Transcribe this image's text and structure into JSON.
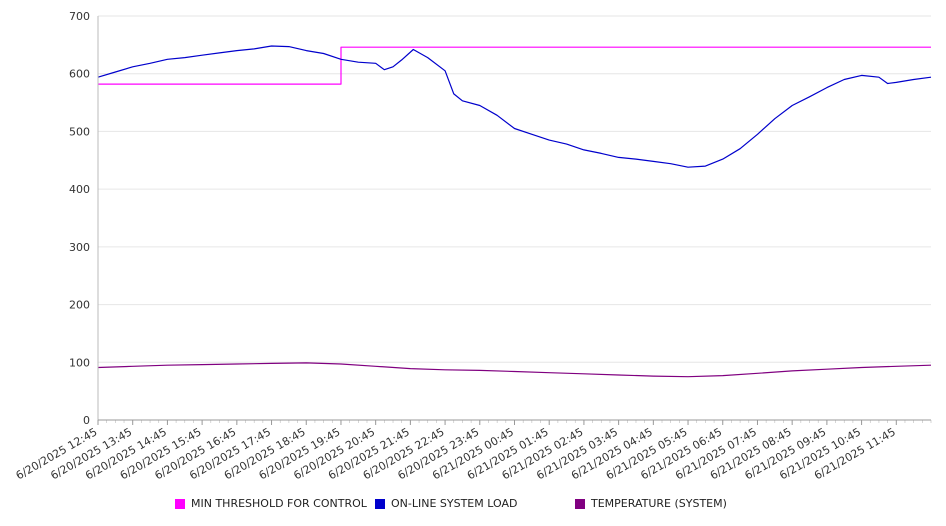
{
  "chart_data": {
    "type": "line",
    "y_ticks": [
      0,
      100,
      200,
      300,
      400,
      500,
      600,
      700
    ],
    "ylim": [
      0,
      700
    ],
    "grid": true,
    "legend_placement": "bottom",
    "x_tick_labels": [
      "6/20/2025 12:45",
      "6/20/2025 13:45",
      "6/20/2025 14:45",
      "6/20/2025 15:45",
      "6/20/2025 16:45",
      "6/20/2025 17:45",
      "6/20/2025 18:45",
      "6/20/2025 19:45",
      "6/20/2025 20:45",
      "6/20/2025 21:45",
      "6/20/2025 22:45",
      "6/20/2025 23:45",
      "6/21/2025 00:45",
      "6/21/2025 01:45",
      "6/21/2025 02:45",
      "6/21/2025 03:45",
      "6/21/2025 04:45",
      "6/21/2025 05:45",
      "6/21/2025 06:45",
      "6/21/2025 07:45",
      "6/21/2025 08:45",
      "6/21/2025 09:45",
      "6/21/2025 10:45",
      "6/21/2025 11:45"
    ],
    "x_range": [
      "6/20/2025 12:45",
      "6/21/2025 12:45"
    ],
    "series": [
      {
        "name": "MIN THRESHOLD FOR CONTROL",
        "color": "#ff00ff",
        "points": [
          [
            "6/20/2025 12:45",
            582
          ],
          [
            "6/20/2025 19:45",
            582
          ],
          [
            "6/20/2025 19:45",
            646
          ],
          [
            "6/21/2025 12:45",
            646
          ]
        ]
      },
      {
        "name": "ON-LINE SYSTEM LOAD",
        "color": "#0000cc",
        "points": [
          [
            "6/20/2025 12:45",
            594
          ],
          [
            "6/20/2025 13:15",
            603
          ],
          [
            "6/20/2025 13:45",
            612
          ],
          [
            "6/20/2025 14:15",
            618
          ],
          [
            "6/20/2025 14:45",
            625
          ],
          [
            "6/20/2025 15:15",
            628
          ],
          [
            "6/20/2025 15:45",
            632
          ],
          [
            "6/20/2025 16:15",
            636
          ],
          [
            "6/20/2025 16:45",
            640
          ],
          [
            "6/20/2025 17:15",
            643
          ],
          [
            "6/20/2025 17:45",
            648
          ],
          [
            "6/20/2025 18:15",
            647
          ],
          [
            "6/20/2025 18:45",
            640
          ],
          [
            "6/20/2025 19:15",
            635
          ],
          [
            "6/20/2025 19:45",
            625
          ],
          [
            "6/20/2025 20:15",
            620
          ],
          [
            "6/20/2025 20:45",
            618
          ],
          [
            "6/20/2025 21:00",
            607
          ],
          [
            "6/20/2025 21:15",
            612
          ],
          [
            "6/20/2025 21:30",
            624
          ],
          [
            "6/20/2025 21:50",
            642
          ],
          [
            "6/20/2025 22:15",
            628
          ],
          [
            "6/20/2025 22:45",
            605
          ],
          [
            "6/20/2025 23:00",
            565
          ],
          [
            "6/20/2025 23:15",
            553
          ],
          [
            "6/20/2025 23:45",
            545
          ],
          [
            "6/21/2025 00:15",
            528
          ],
          [
            "6/21/2025 00:45",
            505
          ],
          [
            "6/21/2025 01:15",
            495
          ],
          [
            "6/21/2025 01:45",
            485
          ],
          [
            "6/21/2025 02:15",
            478
          ],
          [
            "6/21/2025 02:45",
            468
          ],
          [
            "6/21/2025 03:15",
            462
          ],
          [
            "6/21/2025 03:45",
            455
          ],
          [
            "6/21/2025 04:15",
            452
          ],
          [
            "6/21/2025 04:45",
            448
          ],
          [
            "6/21/2025 05:15",
            444
          ],
          [
            "6/21/2025 05:45",
            438
          ],
          [
            "6/21/2025 06:15",
            440
          ],
          [
            "6/21/2025 06:45",
            452
          ],
          [
            "6/21/2025 07:15",
            470
          ],
          [
            "6/21/2025 07:45",
            495
          ],
          [
            "6/21/2025 08:15",
            522
          ],
          [
            "6/21/2025 08:45",
            545
          ],
          [
            "6/21/2025 09:15",
            560
          ],
          [
            "6/21/2025 09:45",
            576
          ],
          [
            "6/21/2025 10:15",
            590
          ],
          [
            "6/21/2025 10:45",
            597
          ],
          [
            "6/21/2025 11:15",
            594
          ],
          [
            "6/21/2025 11:30",
            583
          ],
          [
            "6/21/2025 11:45",
            585
          ],
          [
            "6/21/2025 12:15",
            590
          ],
          [
            "6/21/2025 12:45",
            594
          ]
        ]
      },
      {
        "name": "TEMPERATURE (SYSTEM)",
        "color": "#800080",
        "points": [
          [
            "6/20/2025 12:45",
            91
          ],
          [
            "6/20/2025 13:45",
            93
          ],
          [
            "6/20/2025 14:45",
            95
          ],
          [
            "6/20/2025 15:45",
            96
          ],
          [
            "6/20/2025 16:45",
            97
          ],
          [
            "6/20/2025 17:45",
            98
          ],
          [
            "6/20/2025 18:45",
            99
          ],
          [
            "6/20/2025 19:45",
            97
          ],
          [
            "6/20/2025 20:45",
            93
          ],
          [
            "6/20/2025 21:45",
            89
          ],
          [
            "6/20/2025 22:45",
            87
          ],
          [
            "6/20/2025 23:45",
            86
          ],
          [
            "6/21/2025 00:45",
            84
          ],
          [
            "6/21/2025 01:45",
            82
          ],
          [
            "6/21/2025 02:45",
            80
          ],
          [
            "6/21/2025 03:45",
            78
          ],
          [
            "6/21/2025 04:45",
            76
          ],
          [
            "6/21/2025 05:45",
            75
          ],
          [
            "6/21/2025 06:45",
            77
          ],
          [
            "6/21/2025 07:45",
            81
          ],
          [
            "6/21/2025 08:45",
            85
          ],
          [
            "6/21/2025 09:45",
            88
          ],
          [
            "6/21/2025 10:45",
            91
          ],
          [
            "6/21/2025 11:45",
            93
          ],
          [
            "6/21/2025 12:45",
            95
          ]
        ]
      }
    ]
  }
}
